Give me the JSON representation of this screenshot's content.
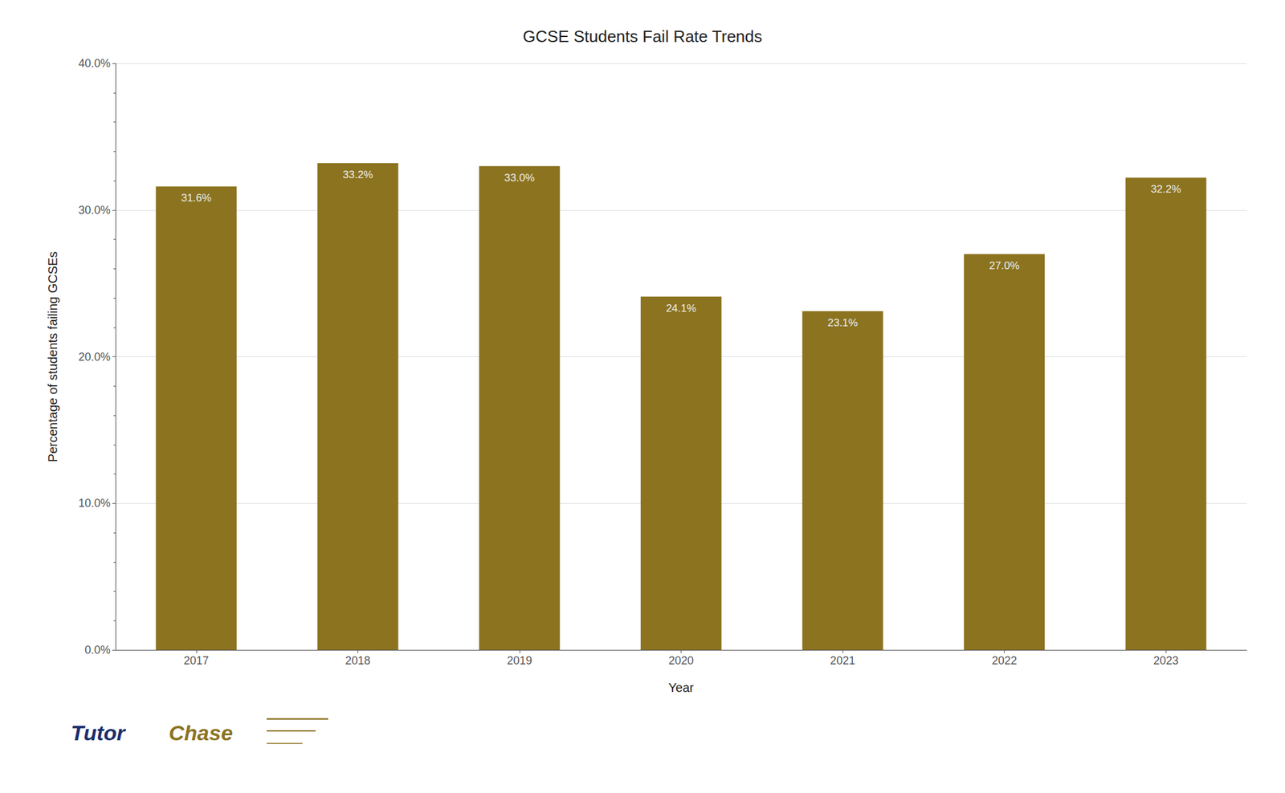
{
  "chart_data": {
    "type": "bar",
    "title": "GCSE Students Fail Rate Trends",
    "xlabel": "Year",
    "ylabel": "Percentage of students failing GCSEs",
    "categories": [
      "2017",
      "2018",
      "2019",
      "2020",
      "2021",
      "2022",
      "2023"
    ],
    "values": [
      31.6,
      33.2,
      33.0,
      24.1,
      23.1,
      27.0,
      32.2
    ],
    "value_labels": [
      "31.6%",
      "33.2%",
      "33.0%",
      "24.1%",
      "23.1%",
      "27.0%",
      "32.2%"
    ],
    "data_labels": true,
    "color": "#8B7320",
    "ylim": [
      0,
      40
    ],
    "yticks": [
      {
        "value": 0,
        "label": "0.0%"
      },
      {
        "value": 10,
        "label": "10.0%"
      },
      {
        "value": 20,
        "label": "20.0%"
      },
      {
        "value": 30,
        "label": "30.0%"
      },
      {
        "value": 40,
        "label": "40.0%"
      }
    ],
    "grid": true,
    "annotations": [
      {
        "text": "Tutor",
        "color": "#1a2d6b"
      },
      {
        "text": "Chase",
        "color": "#8B7320"
      }
    ]
  }
}
